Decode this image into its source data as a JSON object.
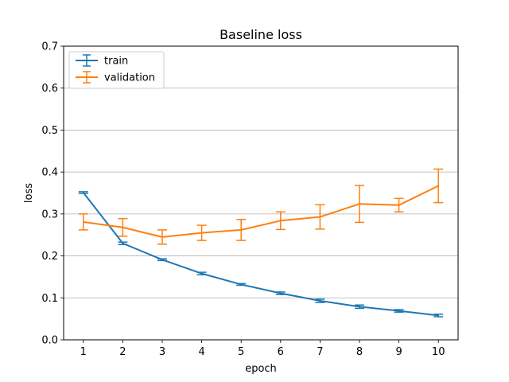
{
  "chart_data": {
    "type": "line",
    "title": "Baseline loss",
    "xlabel": "epoch",
    "ylabel": "loss",
    "x": [
      1,
      2,
      3,
      4,
      5,
      6,
      7,
      8,
      9,
      10
    ],
    "xlim": [
      0.5,
      10.5
    ],
    "ylim": [
      0,
      0.7
    ],
    "yticks": [
      0.0,
      0.1,
      0.2,
      0.3,
      0.4,
      0.5,
      0.6,
      0.7
    ],
    "ytick_labels": [
      "0.0",
      "0.1",
      "0.2",
      "0.3",
      "0.4",
      "0.5",
      "0.6",
      "0.7"
    ],
    "xticks": [
      1,
      2,
      3,
      4,
      5,
      6,
      7,
      8,
      9,
      10
    ],
    "xtick_labels": [
      "1",
      "2",
      "3",
      "4",
      "5",
      "6",
      "7",
      "8",
      "9",
      "10"
    ],
    "grid": "horizontal",
    "legend_position": "top-left",
    "series": [
      {
        "name": "train",
        "color": "#1f77b4",
        "values": [
          0.351,
          0.23,
          0.191,
          0.158,
          0.132,
          0.111,
          0.093,
          0.079,
          0.069,
          0.058
        ],
        "errors": [
          0.002,
          0.003,
          0.002,
          0.003,
          0.002,
          0.003,
          0.004,
          0.004,
          0.003,
          0.003
        ]
      },
      {
        "name": "validation",
        "color": "#ff7f0e",
        "values": [
          0.281,
          0.268,
          0.245,
          0.255,
          0.262,
          0.284,
          0.293,
          0.324,
          0.321,
          0.367
        ],
        "errors": [
          0.019,
          0.021,
          0.017,
          0.018,
          0.025,
          0.021,
          0.029,
          0.044,
          0.016,
          0.04
        ]
      }
    ]
  }
}
